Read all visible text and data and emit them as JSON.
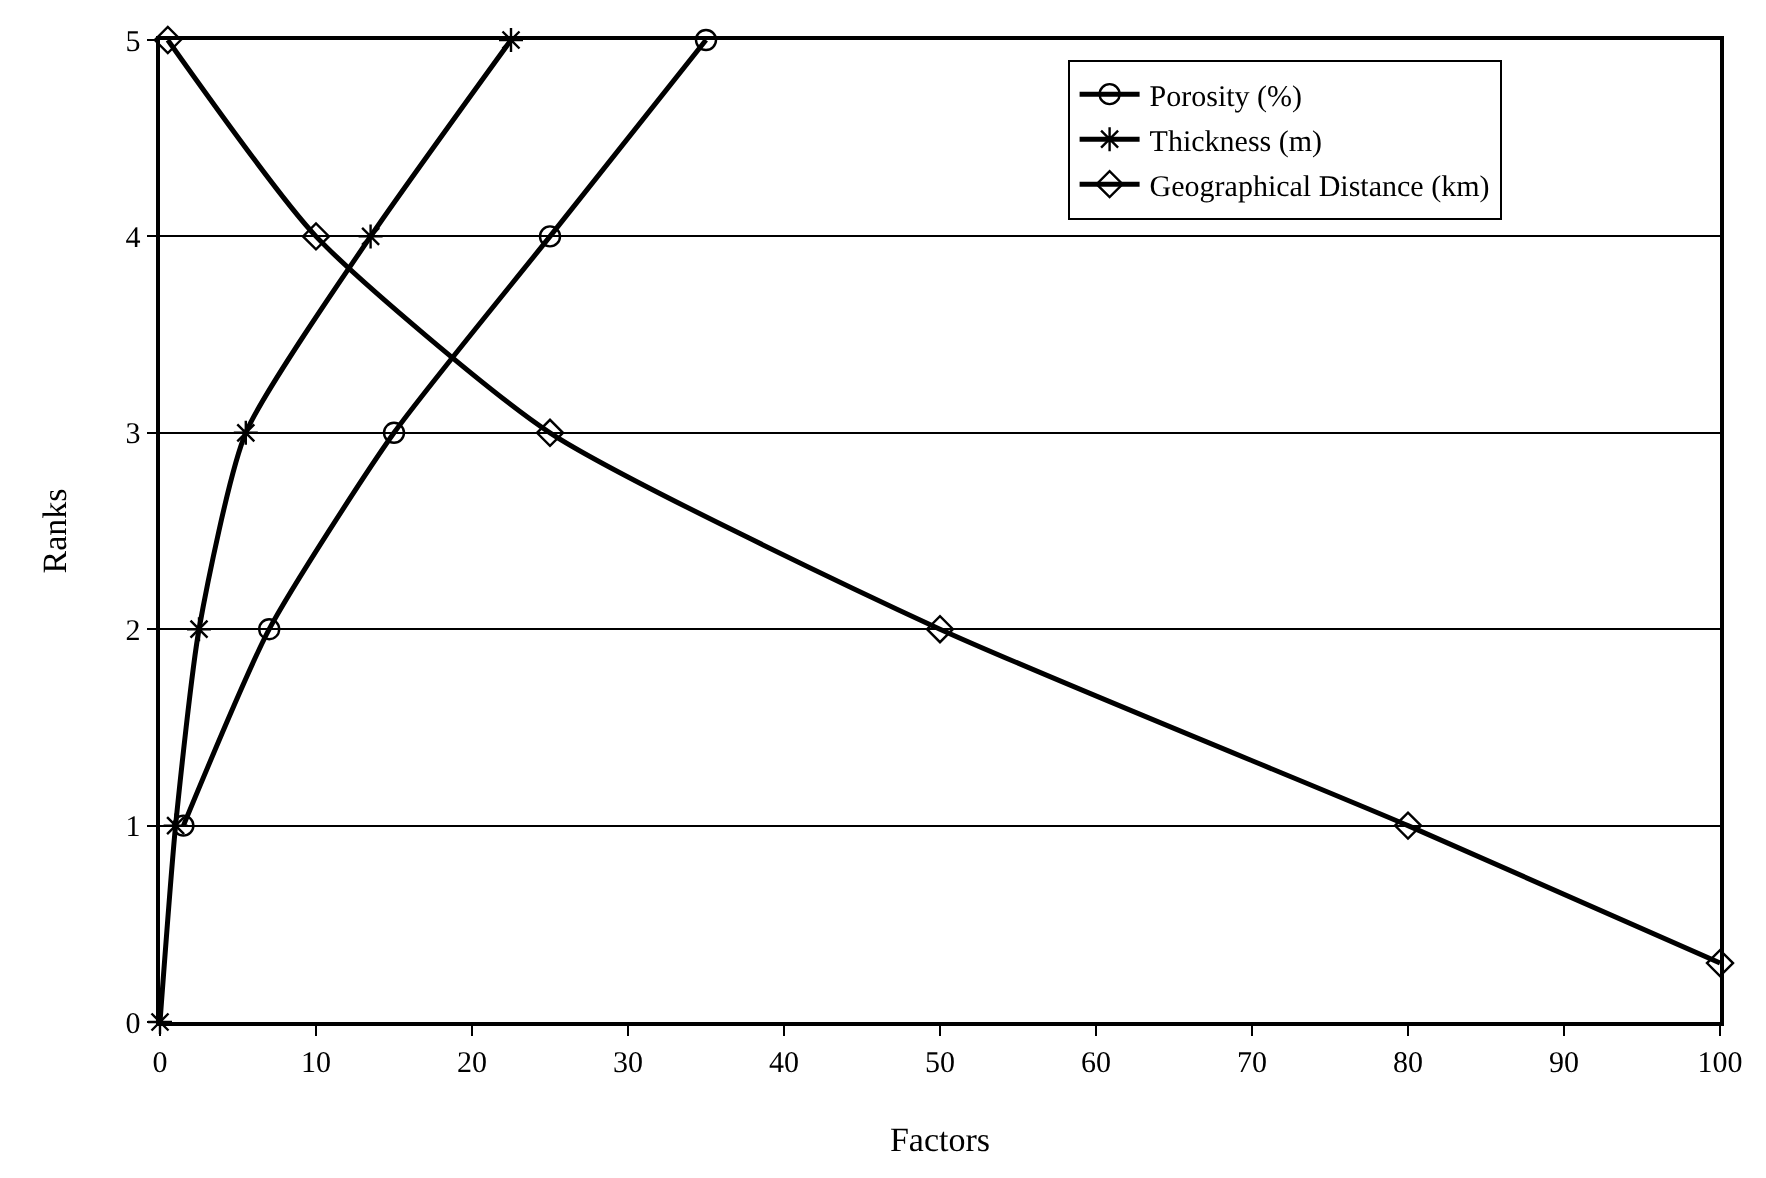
{
  "chart_data": {
    "type": "line",
    "xlabel": "Factors",
    "ylabel": "Ranks",
    "xlim": [
      0,
      100
    ],
    "xticks": [
      0,
      10,
      20,
      30,
      40,
      50,
      60,
      70,
      80,
      90,
      100
    ],
    "ylim": [
      0,
      5
    ],
    "yticks": [
      0,
      1,
      2,
      3,
      4,
      5
    ],
    "grid": "y",
    "legend": "top right",
    "line_style": "solid",
    "series": [
      {
        "name": "Porosity (%)",
        "color": "#000000",
        "marker": "circle",
        "x": [
          1.5,
          7,
          15,
          25,
          35
        ],
        "values": [
          1,
          2,
          3,
          4,
          5
        ]
      },
      {
        "name": "Thickness (m)",
        "color": "#000000",
        "marker": "cross",
        "x": [
          0,
          1,
          2.5,
          5.5,
          13.5,
          22.5
        ],
        "values": [
          0,
          1,
          2,
          3,
          4,
          5
        ]
      },
      {
        "name": "Geographical Distance (km)",
        "color": "#000000",
        "marker": "diamond",
        "x": [
          0.5,
          10,
          25,
          50,
          80,
          100
        ],
        "values": [
          5,
          4,
          3,
          2,
          1,
          0.3
        ]
      }
    ]
  }
}
